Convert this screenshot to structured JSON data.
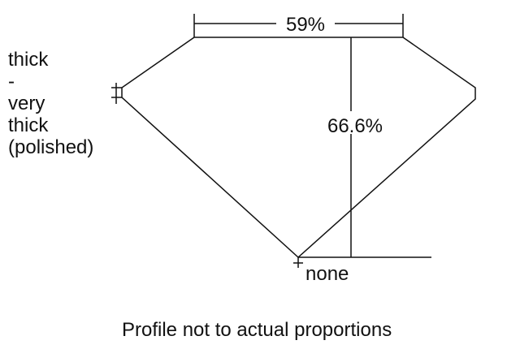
{
  "girdle": {
    "lines": [
      "thick",
      "-",
      "very",
      "thick",
      "(polished)"
    ]
  },
  "table_percent": "59%",
  "depth_percent": "66.6%",
  "culet": "none",
  "caption": "Profile not to actual proportions",
  "colors": {
    "line": "#111111",
    "background": "#ffffff"
  }
}
